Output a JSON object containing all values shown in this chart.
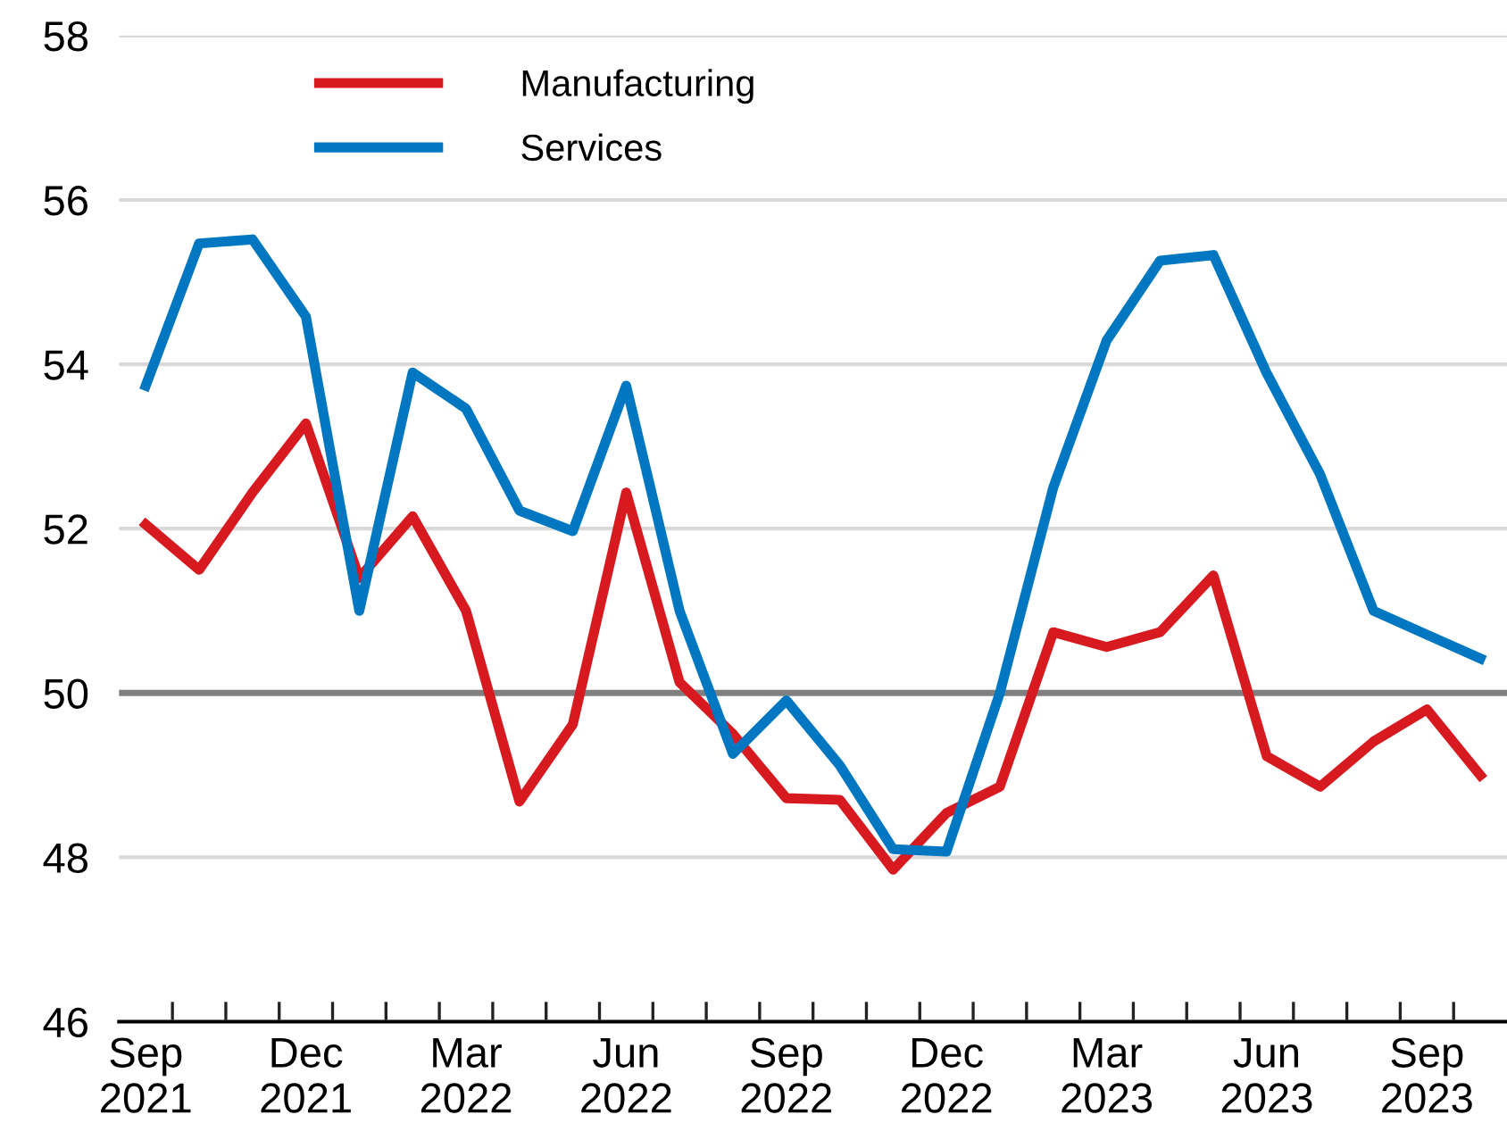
{
  "chart_data": {
    "type": "line",
    "categories": [
      "Sep\n2021",
      null,
      null,
      "Dec\n2021",
      null,
      null,
      "Mar\n2022",
      null,
      null,
      "Jun\n2022",
      null,
      null,
      "Sep\n2022",
      null,
      null,
      "Dec\n2022",
      null,
      null,
      "Mar\n2023",
      null,
      null,
      "Jun\n2023",
      null,
      null,
      "Sep\n2023",
      null
    ],
    "series": [
      {
        "name": "Manufacturing",
        "color": "#d71920",
        "values": [
          52.05,
          51.5,
          52.44,
          53.28,
          51.4,
          52.15,
          51.0,
          48.68,
          49.62,
          52.44,
          50.13,
          49.5,
          48.72,
          48.7,
          47.85,
          48.54,
          48.86,
          50.74,
          50.56,
          50.74,
          51.43,
          49.23,
          48.86,
          49.41,
          49.8,
          49.0
        ]
      },
      {
        "name": "Services",
        "color": "#0077c0",
        "values": [
          53.74,
          55.47,
          55.52,
          54.58,
          51.0,
          53.9,
          53.46,
          52.22,
          51.97,
          53.74,
          51.0,
          49.26,
          49.91,
          49.12,
          48.1,
          48.07,
          50.0,
          52.5,
          54.29,
          55.26,
          55.33,
          53.89,
          52.66,
          51.0,
          50.71,
          50.42
        ]
      }
    ],
    "ylim": [
      46,
      58
    ],
    "yticks": [
      46,
      48,
      50,
      52,
      54,
      56,
      58
    ],
    "grid": "y",
    "ref_lines": [
      {
        "axis": "y",
        "value": 50,
        "color": "#808080"
      }
    ],
    "legend": "top left",
    "marker": "none",
    "line_style": "solid"
  }
}
